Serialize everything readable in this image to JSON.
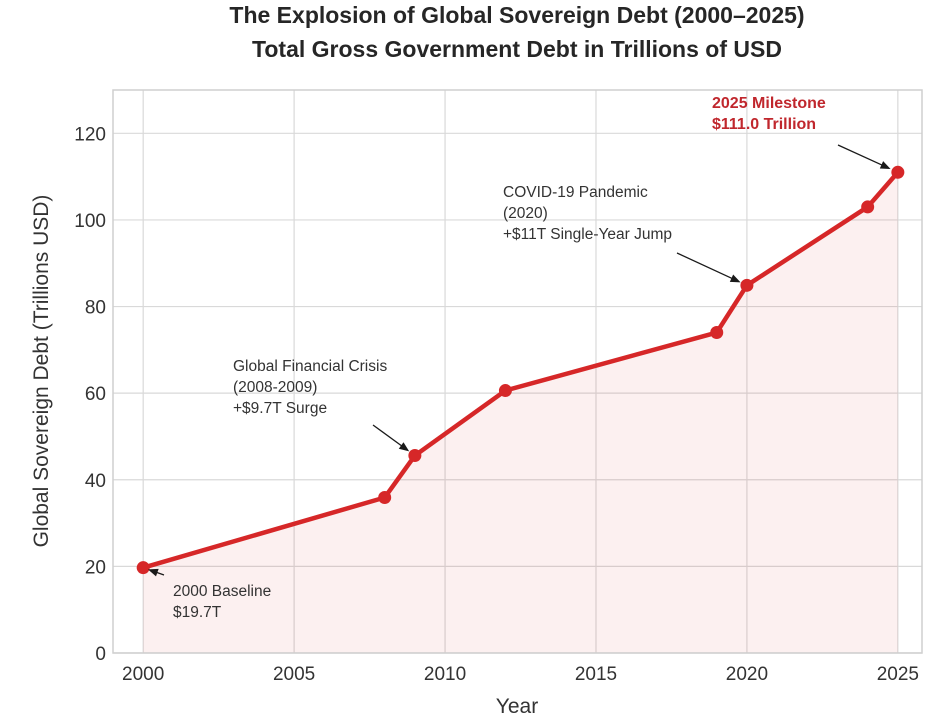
{
  "chart_data": {
    "type": "line",
    "title": "The Explosion of Global Sovereign Debt (2000–2025)",
    "subtitle": "Total Gross Government Debt in Trillions of USD",
    "xlabel": "Year",
    "ylabel": "Global Sovereign Debt (Trillions USD)",
    "xlim": [
      1999,
      2025.8
    ],
    "ylim": [
      0,
      130
    ],
    "xticks": [
      2000,
      2005,
      2010,
      2015,
      2020,
      2025
    ],
    "yticks": [
      0,
      20,
      40,
      60,
      80,
      100,
      120
    ],
    "grid": true,
    "fill_under": true,
    "series": [
      {
        "x": [
          2000,
          2008,
          2009,
          2012,
          2019,
          2020,
          2024,
          2025
        ],
        "values": [
          19.7,
          35.9,
          45.6,
          60.6,
          74.0,
          84.9,
          103.0,
          111.0
        ],
        "color": "#d62728"
      }
    ],
    "annotations": [
      {
        "lines": [
          "2000 Baseline",
          "$19.7T"
        ],
        "target_x": 2000,
        "target_y": 19.7,
        "bold": false,
        "color": "#333333"
      },
      {
        "lines": [
          "Global Financial Crisis",
          "(2008-2009)",
          "+$9.7T Surge"
        ],
        "target_x": 2009,
        "target_y": 45.6,
        "bold": false,
        "color": "#333333"
      },
      {
        "lines": [
          "COVID-19 Pandemic",
          "(2020)",
          "+$11T Single-Year Jump"
        ],
        "target_x": 2020,
        "target_y": 84.9,
        "bold": false,
        "color": "#333333"
      },
      {
        "lines": [
          "2025 Milestone",
          "$111.0 Trillion"
        ],
        "target_x": 2025,
        "target_y": 111.0,
        "bold": true,
        "color": "#c0272d"
      }
    ]
  }
}
